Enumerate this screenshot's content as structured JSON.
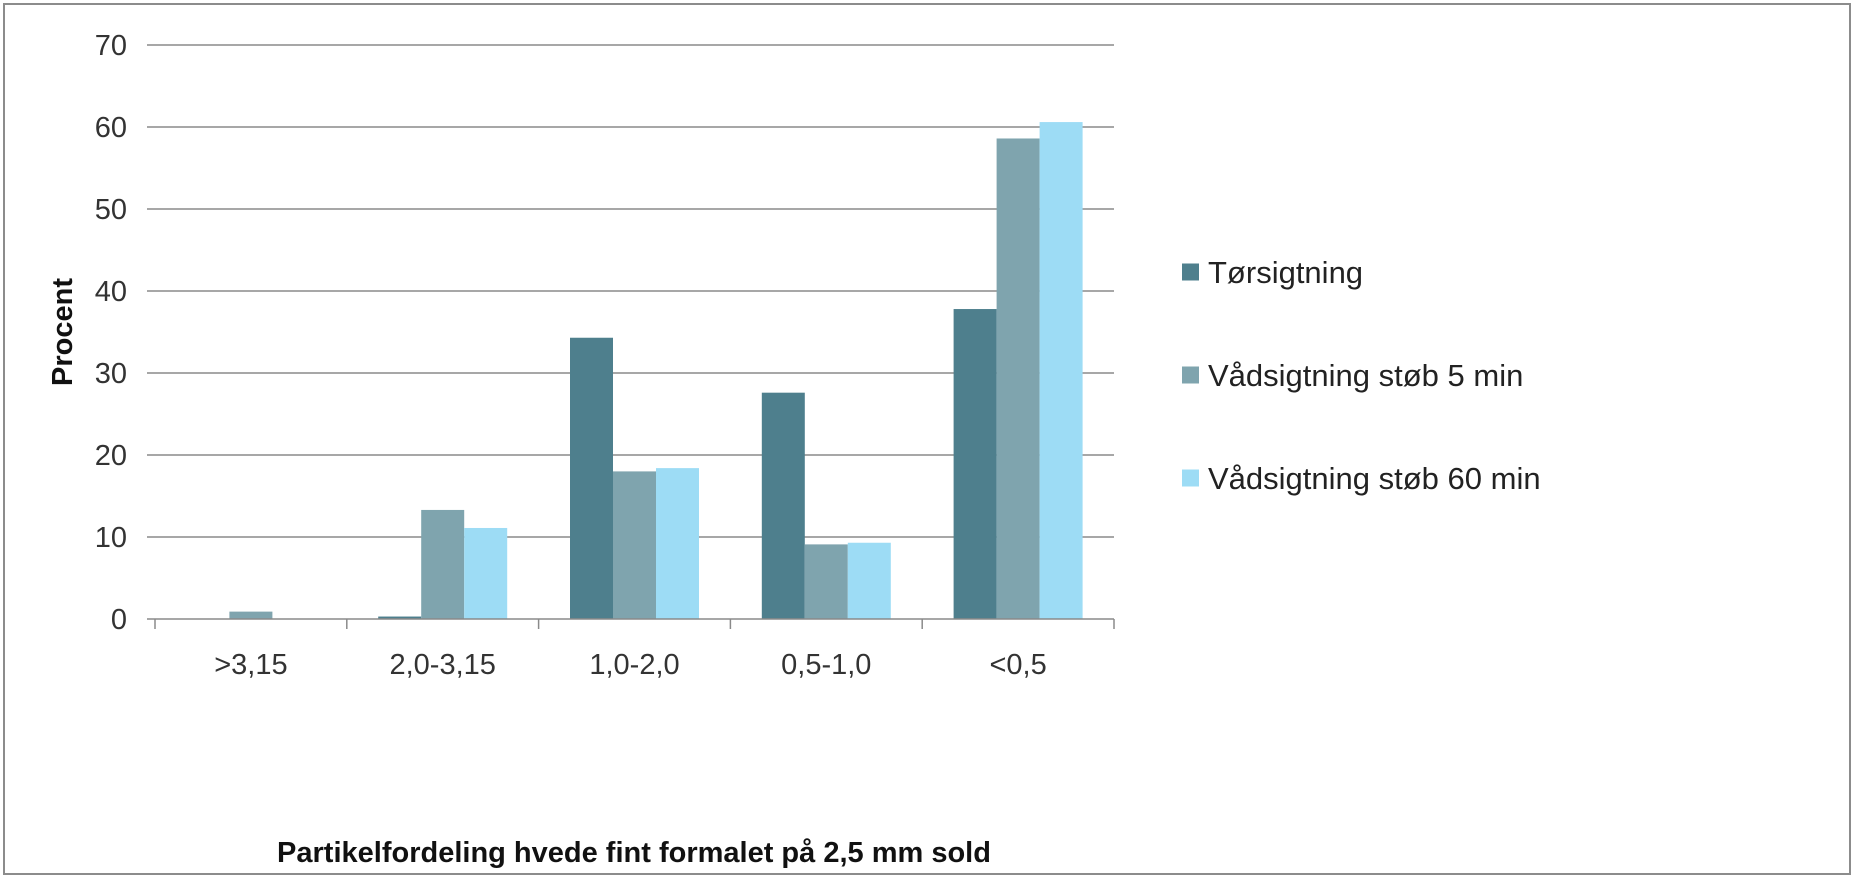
{
  "chart_data": {
    "type": "bar",
    "title": "",
    "xlabel": "Partikelfordeling hvede fint formalet på 2,5 mm sold",
    "ylabel": "Procent",
    "ylim": [
      0,
      70
    ],
    "yticks": [
      "0",
      "10",
      "20",
      "30",
      "40",
      "50",
      "60",
      "70"
    ],
    "grid": true,
    "legend_position": "right",
    "categories": [
      ">3,15",
      "2,0-3,15",
      "1,0-2,0",
      "0,5-1,0",
      "<0,5"
    ],
    "series": [
      {
        "name": "Tørsigtning",
        "color": "#4e7f8d",
        "values": [
          0,
          0.3,
          34.3,
          27.6,
          37.8
        ]
      },
      {
        "name": "Vådsigtning støb 5 min",
        "color": "#7fa4ae",
        "values": [
          0.9,
          13.3,
          18.0,
          9.1,
          58.6
        ]
      },
      {
        "name": "Vådsigtning støb 60 min",
        "color": "#9ddcf5",
        "values": [
          0,
          11.1,
          18.4,
          9.3,
          60.6
        ]
      }
    ]
  }
}
